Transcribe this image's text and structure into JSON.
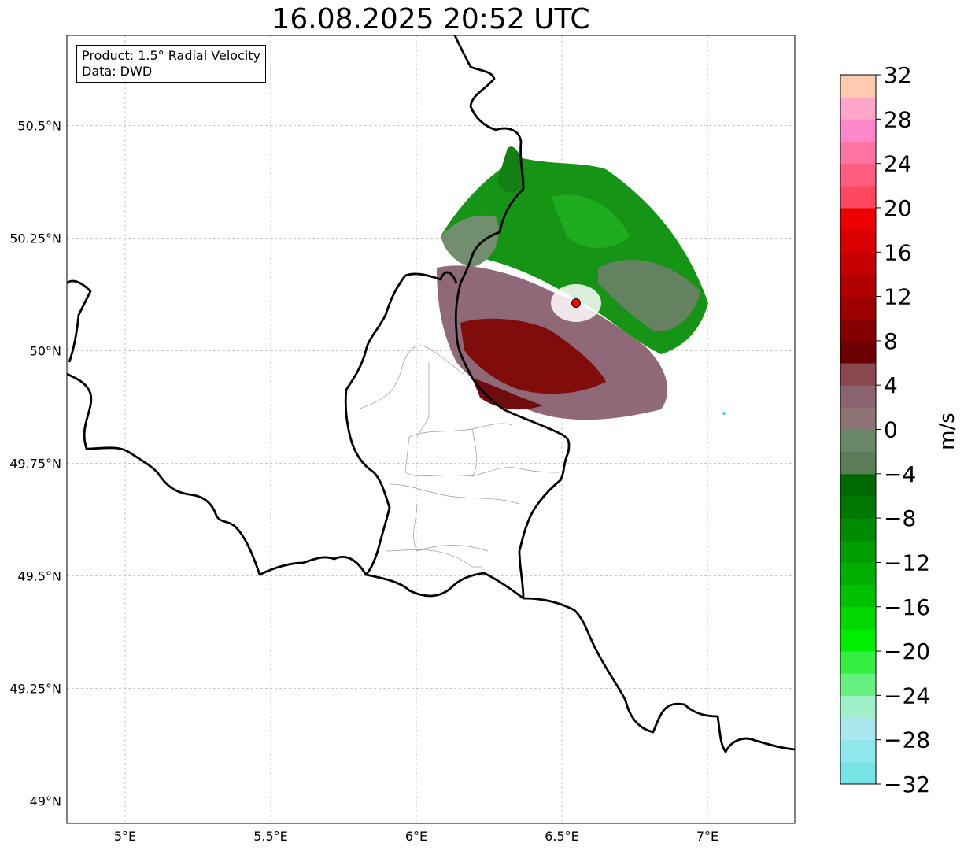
{
  "title": "16.08.2025 20:52 UTC",
  "info": {
    "product": "Product: 1.5° Radial Velocity",
    "data": "Data: DWD"
  },
  "map": {
    "extent": {
      "lon": [
        4.8,
        7.3
      ],
      "lat": [
        48.95,
        50.7
      ]
    },
    "lon_ticks": [
      {
        "value": 5.0,
        "label": "5°E"
      },
      {
        "value": 5.5,
        "label": "5.5°E"
      },
      {
        "value": 6.0,
        "label": "6°E"
      },
      {
        "value": 6.5,
        "label": "6.5°E"
      },
      {
        "value": 7.0,
        "label": "7°E"
      }
    ],
    "lat_ticks": [
      {
        "value": 50.5,
        "label": "50.5°N"
      },
      {
        "value": 50.25,
        "label": "50.25°N"
      },
      {
        "value": 50.0,
        "label": "50°N"
      },
      {
        "value": 49.75,
        "label": "49.75°N"
      },
      {
        "value": 49.5,
        "label": "49.5°N"
      },
      {
        "value": 49.25,
        "label": "49.25°N"
      },
      {
        "value": 49.0,
        "label": "49°N"
      }
    ],
    "radar_site": {
      "lon": 6.548,
      "lat": 50.11,
      "color": "#ff0000"
    },
    "gridlines": true
  },
  "colorbar": {
    "unit": "m/s",
    "min": -32,
    "max": 32,
    "ticks": [
      -32,
      -28,
      -24,
      -20,
      -16,
      -12,
      -8,
      -4,
      0,
      4,
      8,
      12,
      16,
      20,
      24,
      28,
      32
    ],
    "tick_labels": [
      "−32",
      "−28",
      "−24",
      "−20",
      "−16",
      "−12",
      "−8",
      "−4",
      "0",
      "4",
      "8",
      "12",
      "16",
      "20",
      "24",
      "28",
      "32"
    ],
    "colors": [
      "#78e4e6",
      "#8de9ec",
      "#a8e8ec",
      "#9ff0c8",
      "#66f080",
      "#33f040",
      "#00ee00",
      "#00d800",
      "#00c200",
      "#00ae00",
      "#009c00",
      "#008a00",
      "#007800",
      "#006800",
      "#5c7c58",
      "#6a8868",
      "#8c7474",
      "#8a6270",
      "#884850",
      "#6a0000",
      "#840000",
      "#9c0000",
      "#b00000",
      "#c60000",
      "#d80000",
      "#ec0000",
      "#ff4860",
      "#ff5c80",
      "#ff74a0",
      "#ff88cc",
      "#ffa6c8",
      "#ffcab0"
    ]
  }
}
